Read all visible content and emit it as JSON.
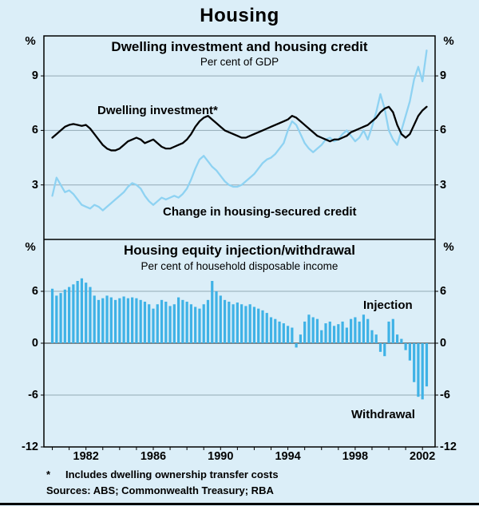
{
  "title": "Housing",
  "footnote": {
    "marker": "*",
    "text": "Includes dwelling ownership transfer costs"
  },
  "sources": "Sources: ABS; Commonwealth Treasury; RBA",
  "colors": {
    "background": "#dbeef8",
    "gridline": "#93a9b5",
    "zeroline": "#1a1a1a",
    "frame": "#000000"
  },
  "chart_data": [
    {
      "type": "line",
      "title": "Dwelling investment and housing credit",
      "subtitle": "Per cent of GDP",
      "unit": "%",
      "xlim": [
        1979.5,
        2002.75
      ],
      "ylim": [
        0,
        11.2
      ],
      "yticks": [
        3,
        6,
        9
      ],
      "xticks": [
        1982,
        1986,
        1990,
        1994,
        1998,
        2002
      ],
      "x_start": 1980.0,
      "x_step": 0.25,
      "grid": true,
      "legend": "inline-annotations",
      "series": [
        {
          "name": "Dwelling investment*",
          "color": "#000000",
          "values": [
            5.6,
            5.8,
            6.0,
            6.2,
            6.3,
            6.35,
            6.3,
            6.25,
            6.3,
            6.1,
            5.8,
            5.5,
            5.2,
            5.0,
            4.9,
            4.9,
            5.0,
            5.2,
            5.4,
            5.5,
            5.6,
            5.5,
            5.3,
            5.4,
            5.5,
            5.3,
            5.1,
            5.0,
            5.0,
            5.1,
            5.2,
            5.3,
            5.5,
            5.8,
            6.2,
            6.5,
            6.7,
            6.8,
            6.6,
            6.4,
            6.2,
            6.0,
            5.9,
            5.8,
            5.7,
            5.6,
            5.6,
            5.7,
            5.8,
            5.9,
            6.0,
            6.1,
            6.2,
            6.3,
            6.4,
            6.5,
            6.6,
            6.8,
            6.7,
            6.5,
            6.3,
            6.1,
            5.9,
            5.7,
            5.6,
            5.5,
            5.4,
            5.5,
            5.5,
            5.6,
            5.7,
            5.9,
            6.0,
            6.1,
            6.2,
            6.3,
            6.5,
            6.7,
            7.0,
            7.2,
            7.3,
            7.0,
            6.3,
            5.8,
            5.6,
            5.8,
            6.3,
            6.8,
            7.1,
            7.3
          ]
        },
        {
          "name": "Change in housing-secured credit",
          "color": "#8ed2f2",
          "values": [
            2.4,
            3.4,
            3.0,
            2.6,
            2.7,
            2.5,
            2.2,
            1.9,
            1.8,
            1.7,
            1.9,
            1.8,
            1.6,
            1.8,
            2.0,
            2.2,
            2.4,
            2.6,
            2.9,
            3.1,
            3.0,
            2.8,
            2.4,
            2.1,
            1.9,
            2.1,
            2.3,
            2.2,
            2.3,
            2.4,
            2.3,
            2.5,
            2.8,
            3.3,
            3.9,
            4.4,
            4.6,
            4.3,
            4.0,
            3.8,
            3.5,
            3.2,
            3.0,
            2.9,
            2.9,
            3.0,
            3.2,
            3.4,
            3.6,
            3.9,
            4.2,
            4.4,
            4.5,
            4.7,
            5.0,
            5.3,
            6.0,
            6.5,
            6.3,
            5.8,
            5.3,
            5.0,
            4.8,
            5.0,
            5.2,
            5.5,
            5.6,
            5.4,
            5.5,
            5.8,
            6.0,
            5.7,
            5.4,
            5.6,
            6.0,
            5.5,
            6.2,
            7.0,
            8.0,
            7.2,
            6.0,
            5.5,
            5.2,
            6.0,
            6.8,
            7.6,
            8.8,
            9.5,
            8.7,
            10.4
          ]
        }
      ]
    },
    {
      "type": "bar",
      "title": "Housing equity injection/withdrawal",
      "subtitle": "Per cent of household disposable income",
      "unit": "%",
      "xlim": [
        1979.5,
        2002.75
      ],
      "ylim": [
        -12,
        12
      ],
      "yticks": [
        -12,
        -6,
        0,
        6
      ],
      "xticks": [
        1982,
        1986,
        1990,
        1994,
        1998,
        2002
      ],
      "x_start": 1980.0,
      "x_step": 0.25,
      "grid": true,
      "labels": {
        "injection": "Injection",
        "withdrawal": "Withdrawal"
      },
      "series": [
        {
          "name": "Housing equity injection/withdrawal",
          "color": "#3fb2e6",
          "values": [
            6.3,
            5.5,
            5.8,
            6.2,
            6.5,
            6.8,
            7.2,
            7.5,
            7.0,
            6.5,
            5.5,
            5.0,
            5.2,
            5.5,
            5.3,
            5.0,
            5.2,
            5.4,
            5.2,
            5.3,
            5.2,
            5.0,
            4.8,
            4.5,
            4.0,
            4.5,
            5.0,
            4.8,
            4.3,
            4.5,
            5.3,
            5.0,
            4.8,
            4.5,
            4.2,
            4.0,
            4.5,
            5.0,
            7.2,
            6.0,
            5.5,
            5.0,
            4.8,
            4.5,
            4.7,
            4.5,
            4.3,
            4.5,
            4.2,
            4.0,
            3.8,
            3.5,
            3.0,
            2.8,
            2.5,
            2.3,
            2.0,
            1.8,
            -0.5,
            1.0,
            2.5,
            3.3,
            3.0,
            2.8,
            1.5,
            2.3,
            2.5,
            2.0,
            2.2,
            2.5,
            1.8,
            2.8,
            3.0,
            2.5,
            3.3,
            2.8,
            1.5,
            1.0,
            -1.0,
            -1.5,
            2.5,
            2.8,
            1.0,
            0.5,
            -0.8,
            -2.0,
            -4.5,
            -6.2,
            -6.5,
            -5.0
          ]
        }
      ]
    }
  ]
}
